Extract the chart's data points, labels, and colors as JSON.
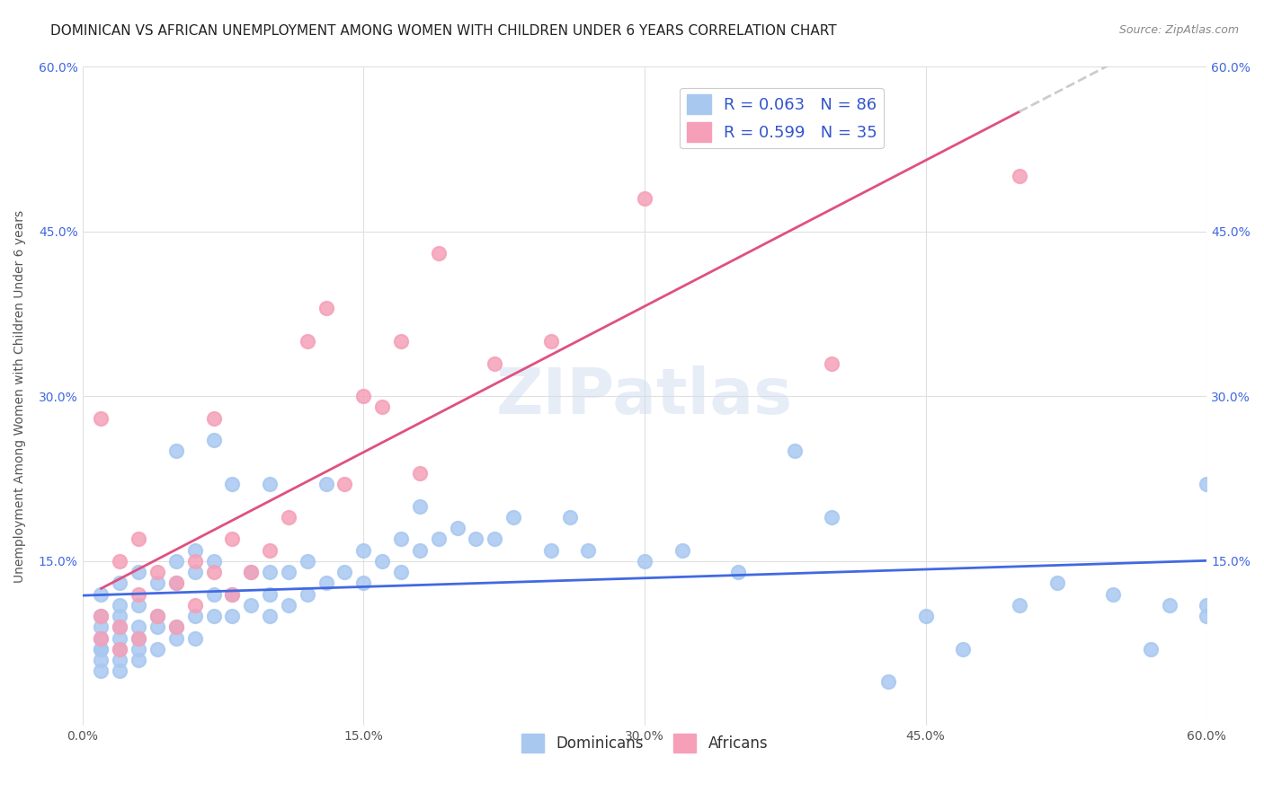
{
  "title": "DOMINICAN VS AFRICAN UNEMPLOYMENT AMONG WOMEN WITH CHILDREN UNDER 6 YEARS CORRELATION CHART",
  "source": "Source: ZipAtlas.com",
  "ylabel": "Unemployment Among Women with Children Under 6 years",
  "xlabel": "",
  "xlim": [
    0.0,
    0.6
  ],
  "ylim": [
    0.0,
    0.6
  ],
  "xtick_labels": [
    "0.0%",
    "15.0%",
    "30.0%",
    "45.0%",
    "60.0%"
  ],
  "xtick_values": [
    0.0,
    0.15,
    0.3,
    0.45,
    0.6
  ],
  "ytick_labels": [
    "15.0%",
    "30.0%",
    "45.0%",
    "60.0%"
  ],
  "ytick_values": [
    0.15,
    0.3,
    0.45,
    0.6
  ],
  "right_ytick_labels": [
    "15.0%",
    "30.0%",
    "45.0%",
    "60.0%"
  ],
  "right_ytick_values": [
    0.15,
    0.3,
    0.45,
    0.6
  ],
  "dominican_color": "#a8c8f0",
  "african_color": "#f5a0b8",
  "dominican_line_color": "#4169e1",
  "african_line_color": "#e05080",
  "legend_color": "#3355cc",
  "watermark": "ZIPatlas",
  "dominican_R": 0.063,
  "dominican_N": 86,
  "african_R": 0.599,
  "african_N": 35,
  "dominican_x": [
    0.01,
    0.01,
    0.01,
    0.01,
    0.01,
    0.01,
    0.01,
    0.01,
    0.02,
    0.02,
    0.02,
    0.02,
    0.02,
    0.02,
    0.02,
    0.02,
    0.03,
    0.03,
    0.03,
    0.03,
    0.03,
    0.03,
    0.04,
    0.04,
    0.04,
    0.04,
    0.05,
    0.05,
    0.05,
    0.05,
    0.05,
    0.06,
    0.06,
    0.06,
    0.06,
    0.07,
    0.07,
    0.07,
    0.07,
    0.08,
    0.08,
    0.08,
    0.09,
    0.09,
    0.1,
    0.1,
    0.1,
    0.1,
    0.11,
    0.11,
    0.12,
    0.12,
    0.13,
    0.13,
    0.14,
    0.15,
    0.15,
    0.16,
    0.17,
    0.17,
    0.18,
    0.18,
    0.19,
    0.2,
    0.21,
    0.22,
    0.23,
    0.25,
    0.26,
    0.27,
    0.3,
    0.32,
    0.35,
    0.38,
    0.4,
    0.43,
    0.45,
    0.47,
    0.5,
    0.52,
    0.55,
    0.57,
    0.58,
    0.6,
    0.6,
    0.6
  ],
  "dominican_y": [
    0.05,
    0.06,
    0.07,
    0.07,
    0.08,
    0.09,
    0.1,
    0.12,
    0.05,
    0.06,
    0.07,
    0.08,
    0.09,
    0.1,
    0.11,
    0.13,
    0.06,
    0.07,
    0.08,
    0.09,
    0.11,
    0.14,
    0.07,
    0.09,
    0.1,
    0.13,
    0.08,
    0.09,
    0.13,
    0.15,
    0.25,
    0.08,
    0.1,
    0.14,
    0.16,
    0.1,
    0.12,
    0.15,
    0.26,
    0.1,
    0.12,
    0.22,
    0.11,
    0.14,
    0.1,
    0.12,
    0.14,
    0.22,
    0.11,
    0.14,
    0.12,
    0.15,
    0.13,
    0.22,
    0.14,
    0.13,
    0.16,
    0.15,
    0.14,
    0.17,
    0.16,
    0.2,
    0.17,
    0.18,
    0.17,
    0.17,
    0.19,
    0.16,
    0.19,
    0.16,
    0.15,
    0.16,
    0.14,
    0.25,
    0.19,
    0.04,
    0.1,
    0.07,
    0.11,
    0.13,
    0.12,
    0.07,
    0.11,
    0.1,
    0.22,
    0.11
  ],
  "african_x": [
    0.01,
    0.01,
    0.01,
    0.02,
    0.02,
    0.02,
    0.03,
    0.03,
    0.03,
    0.04,
    0.04,
    0.05,
    0.05,
    0.06,
    0.06,
    0.07,
    0.07,
    0.08,
    0.08,
    0.09,
    0.1,
    0.11,
    0.12,
    0.13,
    0.14,
    0.15,
    0.16,
    0.17,
    0.18,
    0.19,
    0.22,
    0.25,
    0.3,
    0.4,
    0.5
  ],
  "african_y": [
    0.08,
    0.1,
    0.28,
    0.07,
    0.09,
    0.15,
    0.08,
    0.12,
    0.17,
    0.1,
    0.14,
    0.09,
    0.13,
    0.11,
    0.15,
    0.14,
    0.28,
    0.12,
    0.17,
    0.14,
    0.16,
    0.19,
    0.35,
    0.38,
    0.22,
    0.3,
    0.29,
    0.35,
    0.23,
    0.43,
    0.33,
    0.35,
    0.48,
    0.33,
    0.5
  ],
  "background_color": "#ffffff",
  "grid_color": "#e0e0e0",
  "title_fontsize": 11,
  "axis_label_fontsize": 10,
  "tick_fontsize": 10
}
